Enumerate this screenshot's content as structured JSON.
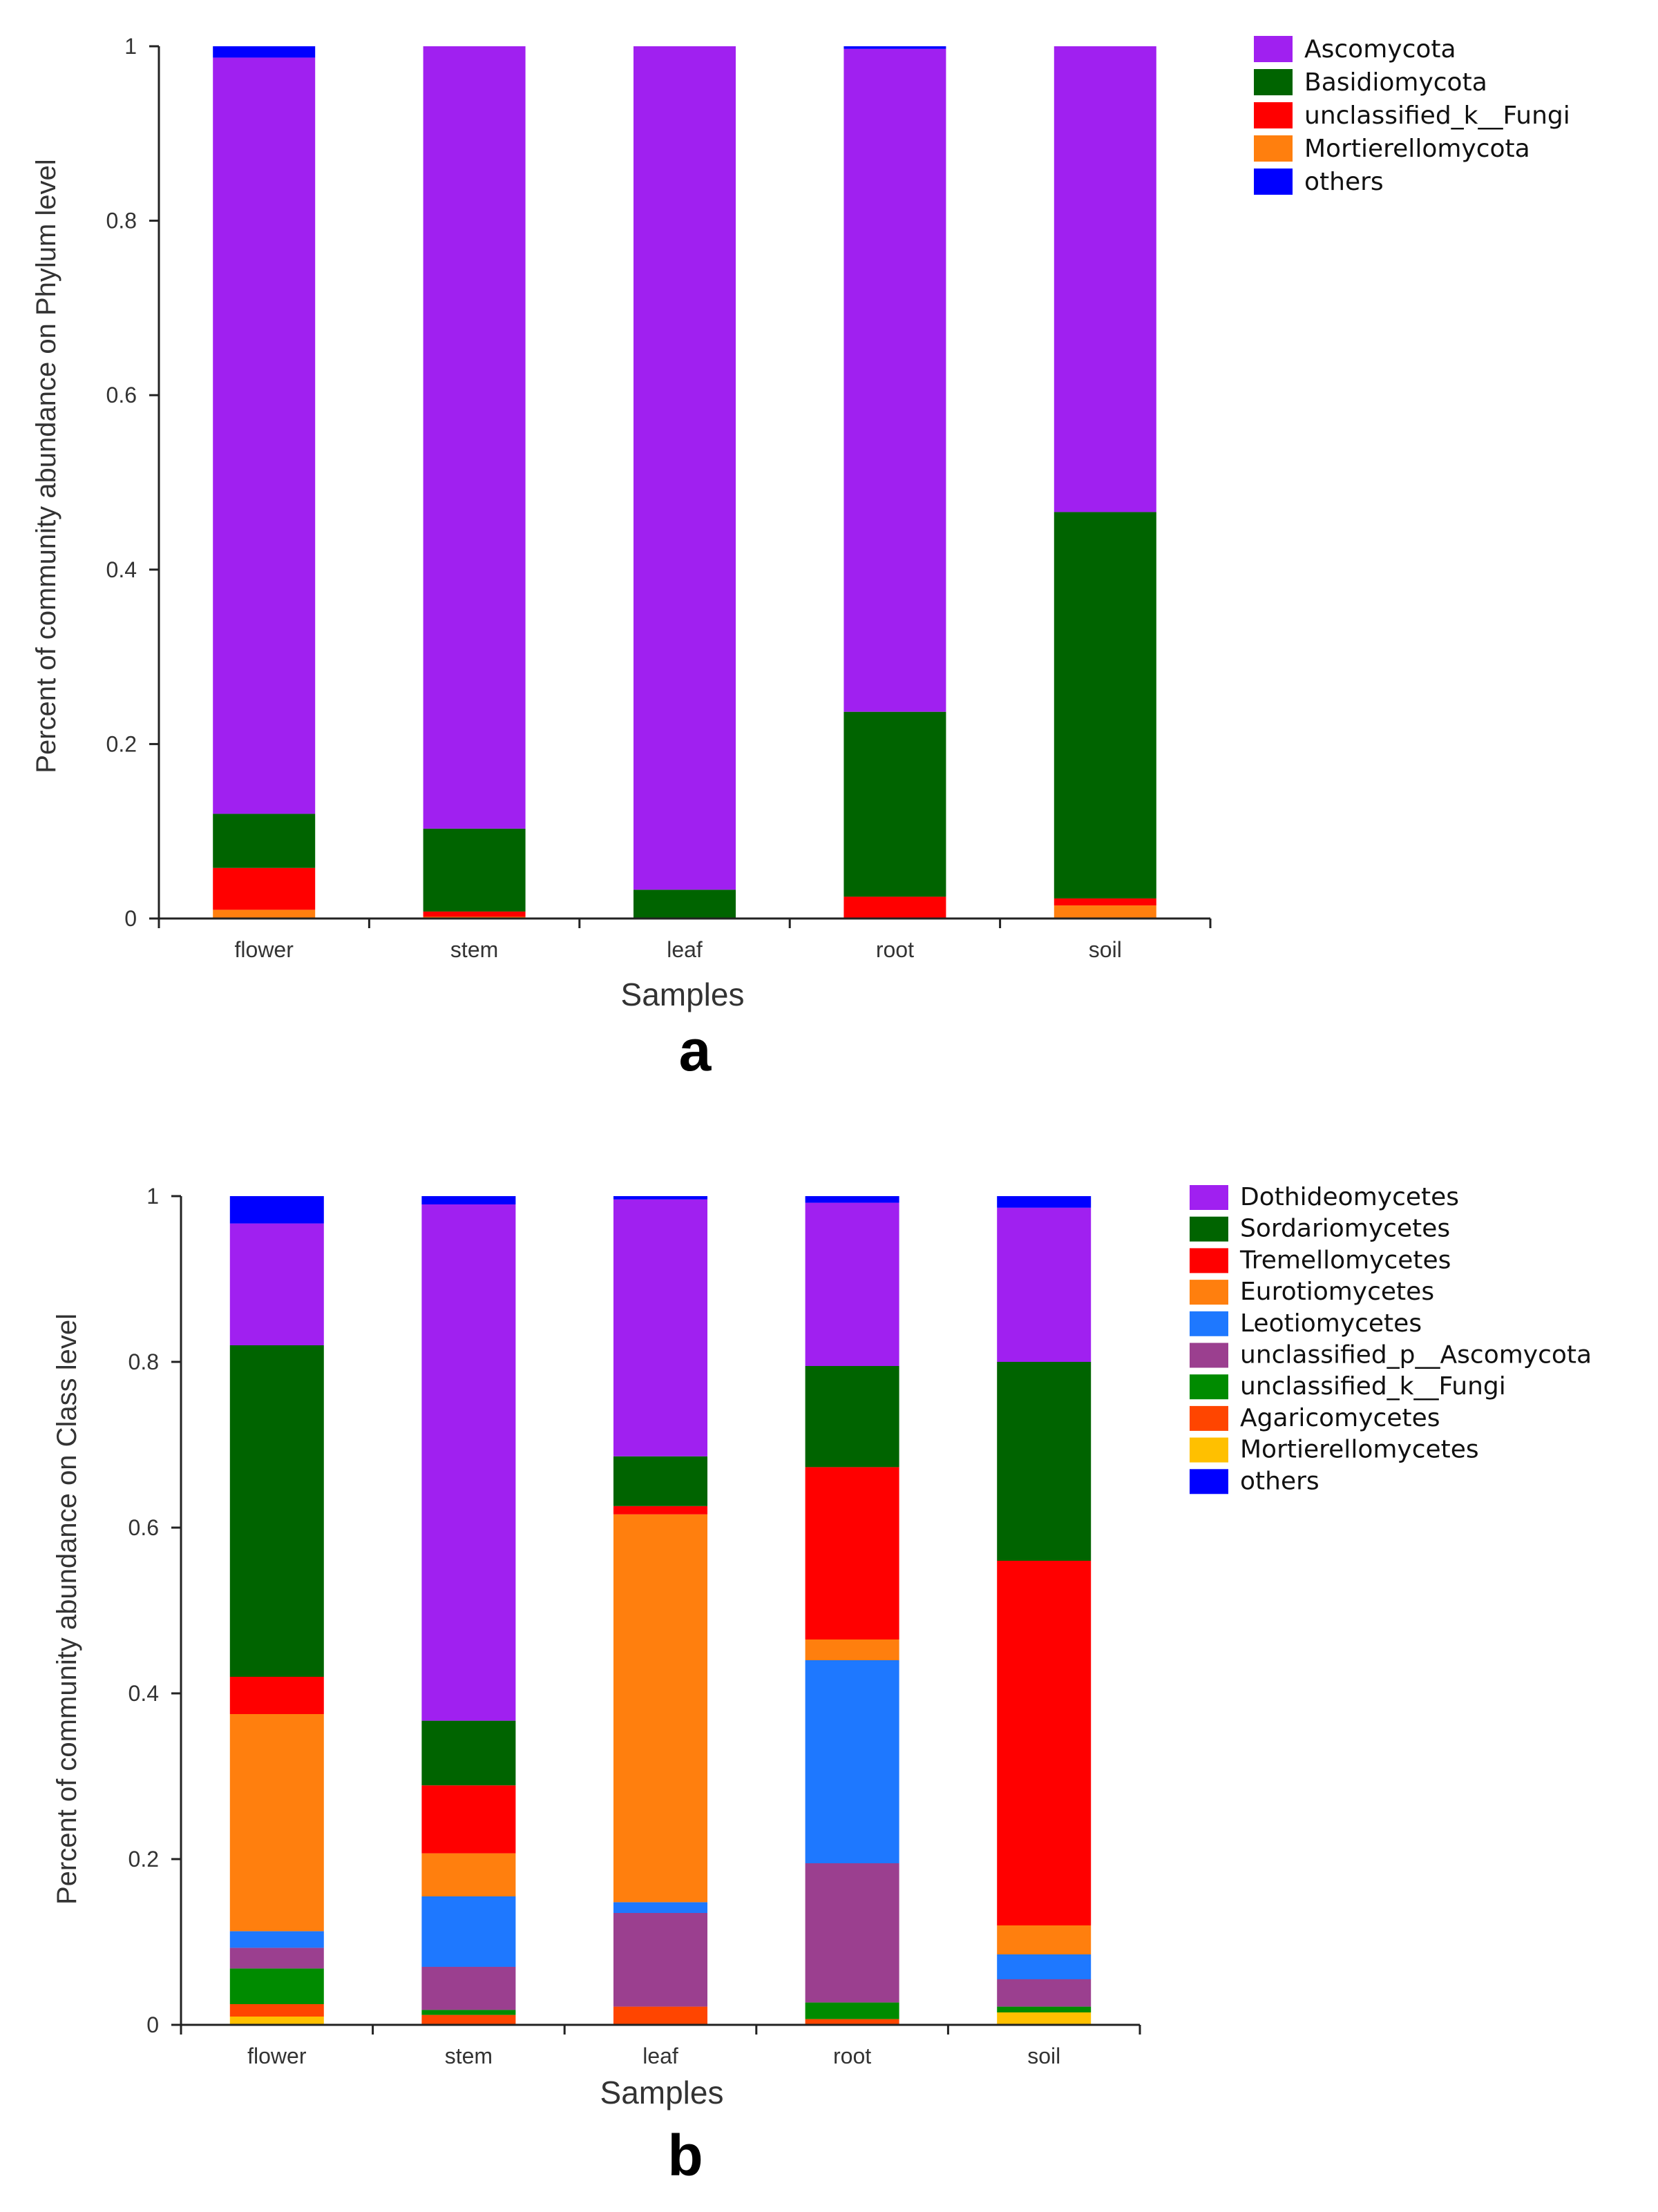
{
  "chart_data": [
    {
      "type": "bar",
      "stacked": true,
      "panel_label": "a",
      "ylabel": "Percent of community abundance on Phylum level",
      "xlabel": "Samples",
      "ylim": [
        0,
        1
      ],
      "yticks": [
        "0",
        "0.2",
        "0.4",
        "0.6",
        "0.8",
        "1"
      ],
      "categories": [
        "flower",
        "stem",
        "leaf",
        "root",
        "soil"
      ],
      "series": [
        {
          "name": "Mortierellomycota",
          "color": "#ff7f0e",
          "values": [
            0.01,
            0.002,
            0.0,
            0.0,
            0.015
          ]
        },
        {
          "name": "unclassified_k__Fungi",
          "color": "#ff0000",
          "values": [
            0.048,
            0.006,
            0.001,
            0.025,
            0.008
          ]
        },
        {
          "name": "Basidiomycota",
          "color": "#006400",
          "values": [
            0.062,
            0.095,
            0.032,
            0.212,
            0.443
          ]
        },
        {
          "name": "Ascomycota",
          "color": "#a020f0",
          "values": [
            0.867,
            0.897,
            0.967,
            0.76,
            0.534
          ]
        },
        {
          "name": "others",
          "color": "#0000ff",
          "values": [
            0.013,
            0.0,
            0.0,
            0.003,
            0.0
          ]
        }
      ],
      "legend": [
        "Ascomycota",
        "Basidiomycota",
        "unclassified_k__Fungi",
        "Mortierellomycota",
        "others"
      ]
    },
    {
      "type": "bar",
      "stacked": true,
      "panel_label": "b",
      "ylabel": "Percent of community abundance on Class level",
      "xlabel": "Samples",
      "ylim": [
        0,
        1
      ],
      "yticks": [
        "0",
        "0.2",
        "0.4",
        "0.6",
        "0.8",
        "1"
      ],
      "categories": [
        "flower",
        "stem",
        "leaf",
        "root",
        "soil"
      ],
      "series": [
        {
          "name": "Mortierellomycetes",
          "color": "#ffc000",
          "values": [
            0.01,
            0.0,
            0.0,
            0.0,
            0.015
          ]
        },
        {
          "name": "Agaricomycetes",
          "color": "#ff4500",
          "values": [
            0.015,
            0.012,
            0.022,
            0.007,
            0.0
          ]
        },
        {
          "name": "unclassified_k__Fungi",
          "color": "#008b00",
          "values": [
            0.043,
            0.006,
            0.0,
            0.02,
            0.007
          ]
        },
        {
          "name": "unclassified_p__Ascomycota",
          "color": "#9b3f8f",
          "values": [
            0.025,
            0.052,
            0.113,
            0.168,
            0.033
          ]
        },
        {
          "name": "Leotiomycetes",
          "color": "#1e78ff",
          "values": [
            0.02,
            0.085,
            0.013,
            0.245,
            0.03
          ]
        },
        {
          "name": "Eurotiomycetes",
          "color": "#ff7f0e",
          "values": [
            0.262,
            0.052,
            0.468,
            0.025,
            0.035
          ]
        },
        {
          "name": "Tremellomycetes",
          "color": "#ff0000",
          "values": [
            0.045,
            0.082,
            0.01,
            0.208,
            0.44
          ]
        },
        {
          "name": "Sordariomycetes",
          "color": "#006400",
          "values": [
            0.4,
            0.078,
            0.06,
            0.122,
            0.24
          ]
        },
        {
          "name": "Dothideomycetes",
          "color": "#a020f0",
          "values": [
            0.147,
            0.623,
            0.31,
            0.197,
            0.186
          ]
        },
        {
          "name": "others",
          "color": "#0000ff",
          "values": [
            0.033,
            0.01,
            0.004,
            0.008,
            0.014
          ]
        }
      ],
      "legend": [
        "Dothideomycetes",
        "Sordariomycetes",
        "Tremellomycetes",
        "Eurotiomycetes",
        "Leotiomycetes",
        "unclassified_p__Ascomycota",
        "unclassified_k__Fungi",
        "Agaricomycetes",
        "Mortierellomycetes",
        "others"
      ]
    }
  ]
}
